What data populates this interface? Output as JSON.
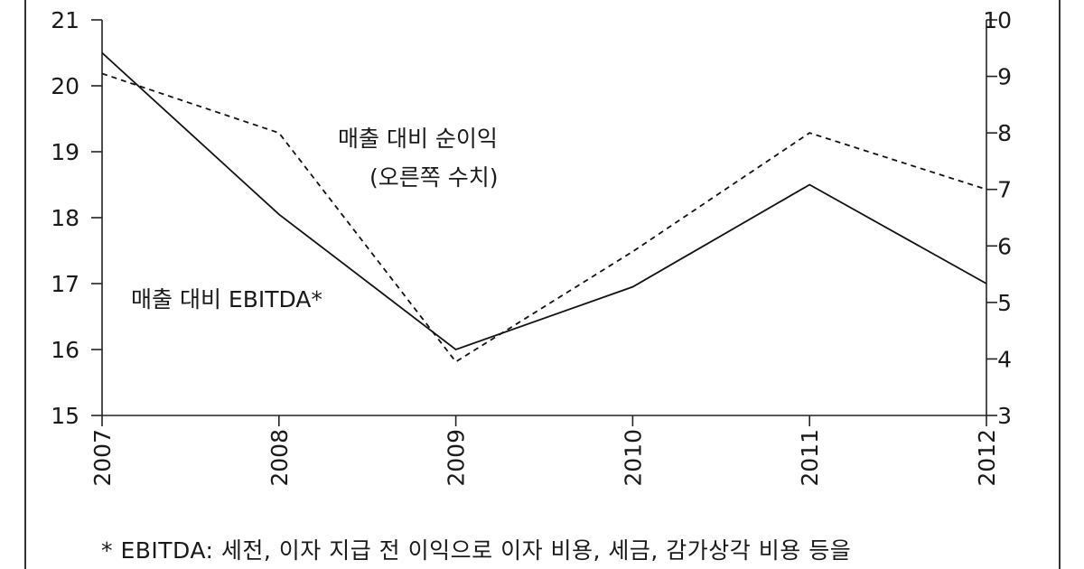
{
  "chart_data": {
    "type": "line",
    "categories": [
      "2007",
      "2008",
      "2009",
      "2010",
      "2011",
      "2012"
    ],
    "y_left": {
      "ylim": [
        15,
        21
      ],
      "ticks": [
        15,
        16,
        17,
        18,
        19,
        20,
        21
      ]
    },
    "y_right": {
      "ylim": [
        3,
        10
      ],
      "ticks": [
        3,
        4,
        5,
        6,
        7,
        8,
        9,
        10
      ]
    },
    "series": [
      {
        "name": "매출 대비 EBITDA*",
        "axis": "left",
        "style": "solid",
        "values": [
          20.5,
          18.05,
          16.0,
          16.95,
          18.5,
          17.0
        ]
      },
      {
        "name": "매출 대비 순이익",
        "name_sub": "(오른쪽 수치)",
        "axis": "right",
        "style": "dashed",
        "values": [
          9.05,
          8.0,
          3.95,
          5.9,
          8.0,
          7.0
        ]
      }
    ]
  },
  "footnote": "* EBITDA: 세전, 이자 지급 전 이익으로 이자 비용, 세금, 감가상각 비용 등을"
}
